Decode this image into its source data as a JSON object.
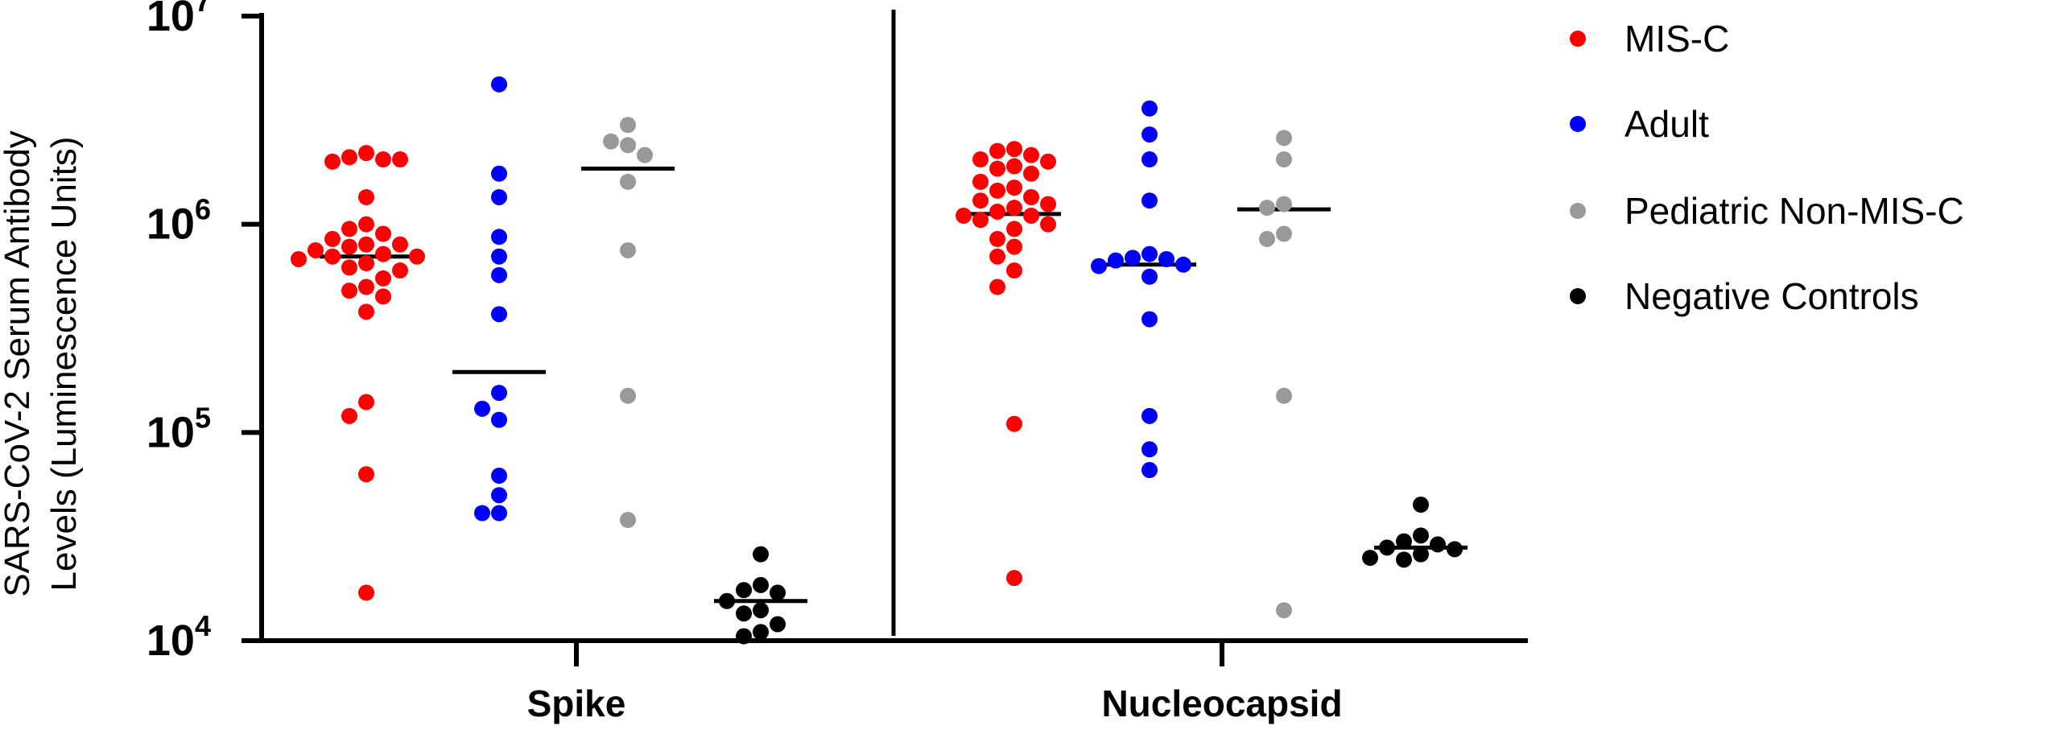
{
  "chart_data": {
    "type": "scatter",
    "title": "",
    "ylabel_lines": [
      "SARS-CoV-2 Serum Antibody",
      "Levels (Luminescence Units)"
    ],
    "xlabel": "",
    "yscale": "log",
    "ylim": [
      10000,
      10000000
    ],
    "y_ticks": [
      {
        "value": 10000,
        "base": "10",
        "exp": "4"
      },
      {
        "value": 100000,
        "base": "10",
        "exp": "5"
      },
      {
        "value": 1000000,
        "base": "10",
        "exp": "6"
      },
      {
        "value": 10000000,
        "base": "10",
        "exp": "7"
      }
    ],
    "categories": [
      "Spike",
      "Nucleocapsid"
    ],
    "legend_position": "right",
    "series": [
      {
        "name": "MIS-C",
        "color": "#ff0000",
        "Spike": {
          "median": 700000,
          "values": [
            2200000,
            2100000,
            2050000,
            2000000,
            2050000,
            1350000,
            1000000,
            950000,
            900000,
            850000,
            800000,
            800000,
            780000,
            750000,
            720000,
            700000,
            700000,
            680000,
            650000,
            620000,
            600000,
            550000,
            500000,
            480000,
            450000,
            380000,
            140000,
            120000,
            63000,
            17000
          ]
        },
        "Nucleocapsid": {
          "median": 1120000,
          "values": [
            2300000,
            2250000,
            2150000,
            2050000,
            2000000,
            1900000,
            1850000,
            1750000,
            1600000,
            1500000,
            1450000,
            1350000,
            1300000,
            1250000,
            1200000,
            1150000,
            1100000,
            1100000,
            1050000,
            1000000,
            950000,
            850000,
            780000,
            700000,
            600000,
            500000,
            110000,
            20000
          ]
        }
      },
      {
        "name": "Adult",
        "color": "#0000ff",
        "Spike": {
          "median": 195000,
          "values": [
            4700000,
            1750000,
            1350000,
            870000,
            700000,
            570000,
            370000,
            155000,
            130000,
            115000,
            62000,
            50000,
            41000,
            41000
          ]
        },
        "Nucleocapsid": {
          "median": 640000,
          "values": [
            3600000,
            2700000,
            2050000,
            1300000,
            720000,
            690000,
            680000,
            670000,
            640000,
            630000,
            560000,
            350000,
            120000,
            83000,
            66000
          ]
        }
      },
      {
        "name": "Pediatric Non-MIS-C",
        "color": "#999999",
        "Spike": {
          "median": 1850000,
          "values": [
            3000000,
            2500000,
            2400000,
            2150000,
            1600000,
            750000,
            150000,
            38000
          ]
        },
        "Nucleocapsid": {
          "median": 1180000,
          "values": [
            2600000,
            2050000,
            1250000,
            1200000,
            900000,
            850000,
            150000,
            14000
          ]
        }
      },
      {
        "name": "Negative Controls",
        "color": "#000000",
        "Spike": {
          "median": 15500,
          "values": [
            26000,
            18500,
            17500,
            17000,
            15500,
            14000,
            13500,
            12000,
            11000,
            10500
          ]
        },
        "Nucleocapsid": {
          "median": 28000,
          "values": [
            45000,
            32000,
            30000,
            29000,
            28000,
            27500,
            26000,
            25000,
            24500
          ]
        }
      }
    ]
  }
}
